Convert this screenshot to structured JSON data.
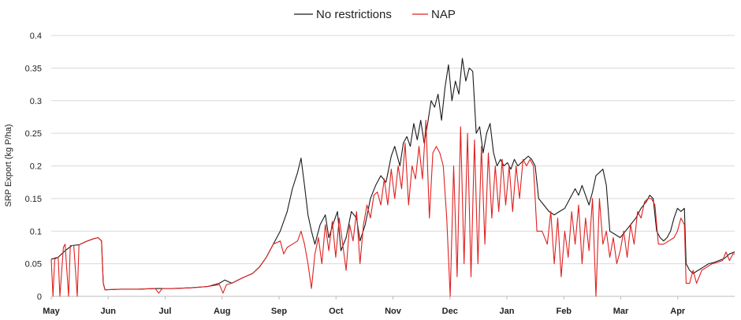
{
  "chart_data": {
    "type": "line",
    "title": "",
    "xlabel": "",
    "ylabel": "SRP Export (kg P/ha)",
    "ylim": [
      0,
      0.4
    ],
    "yticks": [
      "0",
      "0.05",
      "0.1",
      "0.15",
      "0.2",
      "0.25",
      "0.3",
      "0.35",
      "0.4"
    ],
    "months": [
      "May",
      "Jun",
      "Jul",
      "Aug",
      "Sep",
      "Oct",
      "Nov",
      "Dec",
      "Jan",
      "Feb",
      "Mar",
      "Apr"
    ],
    "grid": true,
    "legend_position": "top-center",
    "series": [
      {
        "name": "No restrictions",
        "color": "#1a1a1a",
        "points": [
          [
            0,
            0.057
          ],
          [
            4,
            0.06
          ],
          [
            8,
            0.07
          ],
          [
            12,
            0.078
          ],
          [
            16,
            0.079
          ],
          [
            20,
            0.084
          ],
          [
            24,
            0.088
          ],
          [
            27,
            0.09
          ],
          [
            29,
            0.085
          ],
          [
            30,
            0.02
          ],
          [
            31,
            0.01
          ],
          [
            40,
            0.011
          ],
          [
            50,
            0.011
          ],
          [
            60,
            0.012
          ],
          [
            70,
            0.012
          ],
          [
            80,
            0.013
          ],
          [
            90,
            0.015
          ],
          [
            97,
            0.02
          ],
          [
            100,
            0.025
          ],
          [
            104,
            0.02
          ],
          [
            110,
            0.028
          ],
          [
            116,
            0.035
          ],
          [
            120,
            0.045
          ],
          [
            124,
            0.06
          ],
          [
            128,
            0.08
          ],
          [
            132,
            0.1
          ],
          [
            136,
            0.13
          ],
          [
            139,
            0.165
          ],
          [
            142,
            0.19
          ],
          [
            144,
            0.212
          ],
          [
            146,
            0.17
          ],
          [
            148,
            0.125
          ],
          [
            150,
            0.1
          ],
          [
            152,
            0.08
          ],
          [
            155,
            0.11
          ],
          [
            158,
            0.125
          ],
          [
            160,
            0.09
          ],
          [
            163,
            0.115
          ],
          [
            165,
            0.13
          ],
          [
            167,
            0.07
          ],
          [
            170,
            0.09
          ],
          [
            173,
            0.13
          ],
          [
            176,
            0.12
          ],
          [
            178,
            0.085
          ],
          [
            181,
            0.11
          ],
          [
            184,
            0.15
          ],
          [
            187,
            0.17
          ],
          [
            190,
            0.185
          ],
          [
            193,
            0.175
          ],
          [
            196,
            0.215
          ],
          [
            198,
            0.23
          ],
          [
            201,
            0.2
          ],
          [
            203,
            0.235
          ],
          [
            205,
            0.245
          ],
          [
            207,
            0.23
          ],
          [
            209,
            0.265
          ],
          [
            211,
            0.24
          ],
          [
            213,
            0.27
          ],
          [
            215,
            0.235
          ],
          [
            217,
            0.265
          ],
          [
            219,
            0.3
          ],
          [
            221,
            0.29
          ],
          [
            223,
            0.31
          ],
          [
            225,
            0.27
          ],
          [
            227,
            0.32
          ],
          [
            229,
            0.355
          ],
          [
            231,
            0.3
          ],
          [
            233,
            0.33
          ],
          [
            235,
            0.31
          ],
          [
            237,
            0.365
          ],
          [
            239,
            0.33
          ],
          [
            241,
            0.35
          ],
          [
            243,
            0.345
          ],
          [
            245,
            0.25
          ],
          [
            247,
            0.26
          ],
          [
            249,
            0.22
          ],
          [
            251,
            0.25
          ],
          [
            253,
            0.265
          ],
          [
            255,
            0.22
          ],
          [
            257,
            0.2
          ],
          [
            259,
            0.21
          ],
          [
            261,
            0.2
          ],
          [
            263,
            0.205
          ],
          [
            265,
            0.195
          ],
          [
            267,
            0.21
          ],
          [
            269,
            0.2
          ],
          [
            271,
            0.205
          ],
          [
            273,
            0.21
          ],
          [
            275,
            0.215
          ],
          [
            277,
            0.21
          ],
          [
            279,
            0.2
          ],
          [
            281,
            0.15
          ],
          [
            284,
            0.14
          ],
          [
            287,
            0.13
          ],
          [
            290,
            0.125
          ],
          [
            293,
            0.13
          ],
          [
            296,
            0.135
          ],
          [
            299,
            0.15
          ],
          [
            302,
            0.165
          ],
          [
            304,
            0.155
          ],
          [
            306,
            0.17
          ],
          [
            308,
            0.155
          ],
          [
            310,
            0.14
          ],
          [
            312,
            0.16
          ],
          [
            314,
            0.185
          ],
          [
            316,
            0.19
          ],
          [
            318,
            0.195
          ],
          [
            320,
            0.17
          ],
          [
            322,
            0.1
          ],
          [
            325,
            0.095
          ],
          [
            328,
            0.09
          ],
          [
            331,
            0.1
          ],
          [
            334,
            0.11
          ],
          [
            337,
            0.12
          ],
          [
            340,
            0.135
          ],
          [
            343,
            0.145
          ],
          [
            345,
            0.155
          ],
          [
            347,
            0.15
          ],
          [
            349,
            0.1
          ],
          [
            351,
            0.09
          ],
          [
            353,
            0.085
          ],
          [
            355,
            0.09
          ],
          [
            357,
            0.1
          ],
          [
            359,
            0.12
          ],
          [
            361,
            0.135
          ],
          [
            363,
            0.13
          ],
          [
            365,
            0.135
          ],
          [
            366,
            0.05
          ],
          [
            368,
            0.04
          ],
          [
            370,
            0.035
          ],
          [
            373,
            0.04
          ],
          [
            376,
            0.045
          ],
          [
            379,
            0.05
          ],
          [
            382,
            0.052
          ],
          [
            385,
            0.055
          ],
          [
            388,
            0.058
          ],
          [
            391,
            0.065
          ],
          [
            394,
            0.068
          ]
        ]
      },
      {
        "name": "NAP",
        "color": "#e02020",
        "points": [
          [
            0,
            0.057
          ],
          [
            1,
            0.0
          ],
          [
            2,
            0.057
          ],
          [
            4,
            0.06
          ],
          [
            5,
            0.0
          ],
          [
            7,
            0.075
          ],
          [
            8,
            0.08
          ],
          [
            10,
            0.0
          ],
          [
            11,
            0.078
          ],
          [
            13,
            0.078
          ],
          [
            15,
            0.0
          ],
          [
            16,
            0.079
          ],
          [
            20,
            0.084
          ],
          [
            24,
            0.088
          ],
          [
            27,
            0.09
          ],
          [
            29,
            0.085
          ],
          [
            30,
            0.02
          ],
          [
            31,
            0.01
          ],
          [
            40,
            0.011
          ],
          [
            50,
            0.011
          ],
          [
            60,
            0.012
          ],
          [
            62,
            0.005
          ],
          [
            64,
            0.012
          ],
          [
            70,
            0.012
          ],
          [
            80,
            0.013
          ],
          [
            90,
            0.015
          ],
          [
            97,
            0.018
          ],
          [
            99,
            0.005
          ],
          [
            101,
            0.018
          ],
          [
            104,
            0.02
          ],
          [
            110,
            0.028
          ],
          [
            116,
            0.035
          ],
          [
            120,
            0.045
          ],
          [
            124,
            0.06
          ],
          [
            128,
            0.08
          ],
          [
            132,
            0.085
          ],
          [
            134,
            0.065
          ],
          [
            136,
            0.075
          ],
          [
            139,
            0.08
          ],
          [
            142,
            0.085
          ],
          [
            144,
            0.1
          ],
          [
            146,
            0.08
          ],
          [
            148,
            0.05
          ],
          [
            150,
            0.012
          ],
          [
            152,
            0.065
          ],
          [
            154,
            0.09
          ],
          [
            156,
            0.05
          ],
          [
            158,
            0.11
          ],
          [
            160,
            0.07
          ],
          [
            162,
            0.115
          ],
          [
            164,
            0.06
          ],
          [
            166,
            0.12
          ],
          [
            168,
            0.08
          ],
          [
            170,
            0.04
          ],
          [
            172,
            0.11
          ],
          [
            174,
            0.085
          ],
          [
            176,
            0.13
          ],
          [
            178,
            0.05
          ],
          [
            180,
            0.11
          ],
          [
            182,
            0.14
          ],
          [
            184,
            0.12
          ],
          [
            186,
            0.155
          ],
          [
            188,
            0.16
          ],
          [
            190,
            0.14
          ],
          [
            192,
            0.18
          ],
          [
            194,
            0.14
          ],
          [
            196,
            0.195
          ],
          [
            198,
            0.15
          ],
          [
            200,
            0.2
          ],
          [
            202,
            0.165
          ],
          [
            204,
            0.235
          ],
          [
            206,
            0.14
          ],
          [
            208,
            0.2
          ],
          [
            210,
            0.18
          ],
          [
            212,
            0.23
          ],
          [
            214,
            0.18
          ],
          [
            216,
            0.27
          ],
          [
            218,
            0.12
          ],
          [
            220,
            0.22
          ],
          [
            222,
            0.23
          ],
          [
            224,
            0.22
          ],
          [
            226,
            0.2
          ],
          [
            228,
            0.12
          ],
          [
            230,
            0.0
          ],
          [
            232,
            0.2
          ],
          [
            234,
            0.03
          ],
          [
            236,
            0.26
          ],
          [
            238,
            0.05
          ],
          [
            240,
            0.25
          ],
          [
            242,
            0.03
          ],
          [
            244,
            0.24
          ],
          [
            246,
            0.05
          ],
          [
            248,
            0.23
          ],
          [
            250,
            0.08
          ],
          [
            252,
            0.22
          ],
          [
            254,
            0.12
          ],
          [
            256,
            0.2
          ],
          [
            258,
            0.13
          ],
          [
            260,
            0.21
          ],
          [
            262,
            0.14
          ],
          [
            264,
            0.2
          ],
          [
            266,
            0.13
          ],
          [
            268,
            0.2
          ],
          [
            270,
            0.15
          ],
          [
            272,
            0.21
          ],
          [
            274,
            0.2
          ],
          [
            276,
            0.21
          ],
          [
            278,
            0.2
          ],
          [
            280,
            0.1
          ],
          [
            283,
            0.1
          ],
          [
            286,
            0.08
          ],
          [
            288,
            0.13
          ],
          [
            290,
            0.05
          ],
          [
            292,
            0.12
          ],
          [
            294,
            0.03
          ],
          [
            296,
            0.1
          ],
          [
            298,
            0.06
          ],
          [
            300,
            0.13
          ],
          [
            302,
            0.08
          ],
          [
            304,
            0.14
          ],
          [
            306,
            0.05
          ],
          [
            308,
            0.12
          ],
          [
            310,
            0.07
          ],
          [
            312,
            0.15
          ],
          [
            314,
            0.0
          ],
          [
            316,
            0.15
          ],
          [
            318,
            0.08
          ],
          [
            320,
            0.1
          ],
          [
            322,
            0.06
          ],
          [
            324,
            0.09
          ],
          [
            326,
            0.05
          ],
          [
            328,
            0.07
          ],
          [
            330,
            0.1
          ],
          [
            332,
            0.06
          ],
          [
            334,
            0.11
          ],
          [
            336,
            0.08
          ],
          [
            338,
            0.13
          ],
          [
            340,
            0.12
          ],
          [
            342,
            0.145
          ],
          [
            344,
            0.15
          ],
          [
            346,
            0.15
          ],
          [
            348,
            0.14
          ],
          [
            350,
            0.08
          ],
          [
            353,
            0.08
          ],
          [
            356,
            0.085
          ],
          [
            359,
            0.09
          ],
          [
            361,
            0.1
          ],
          [
            363,
            0.12
          ],
          [
            365,
            0.11
          ],
          [
            366,
            0.02
          ],
          [
            368,
            0.02
          ],
          [
            370,
            0.04
          ],
          [
            372,
            0.02
          ],
          [
            375,
            0.04
          ],
          [
            378,
            0.045
          ],
          [
            381,
            0.05
          ],
          [
            384,
            0.052
          ],
          [
            387,
            0.055
          ],
          [
            389,
            0.068
          ],
          [
            391,
            0.055
          ],
          [
            393,
            0.065
          ],
          [
            394,
            0.065
          ]
        ]
      }
    ]
  }
}
